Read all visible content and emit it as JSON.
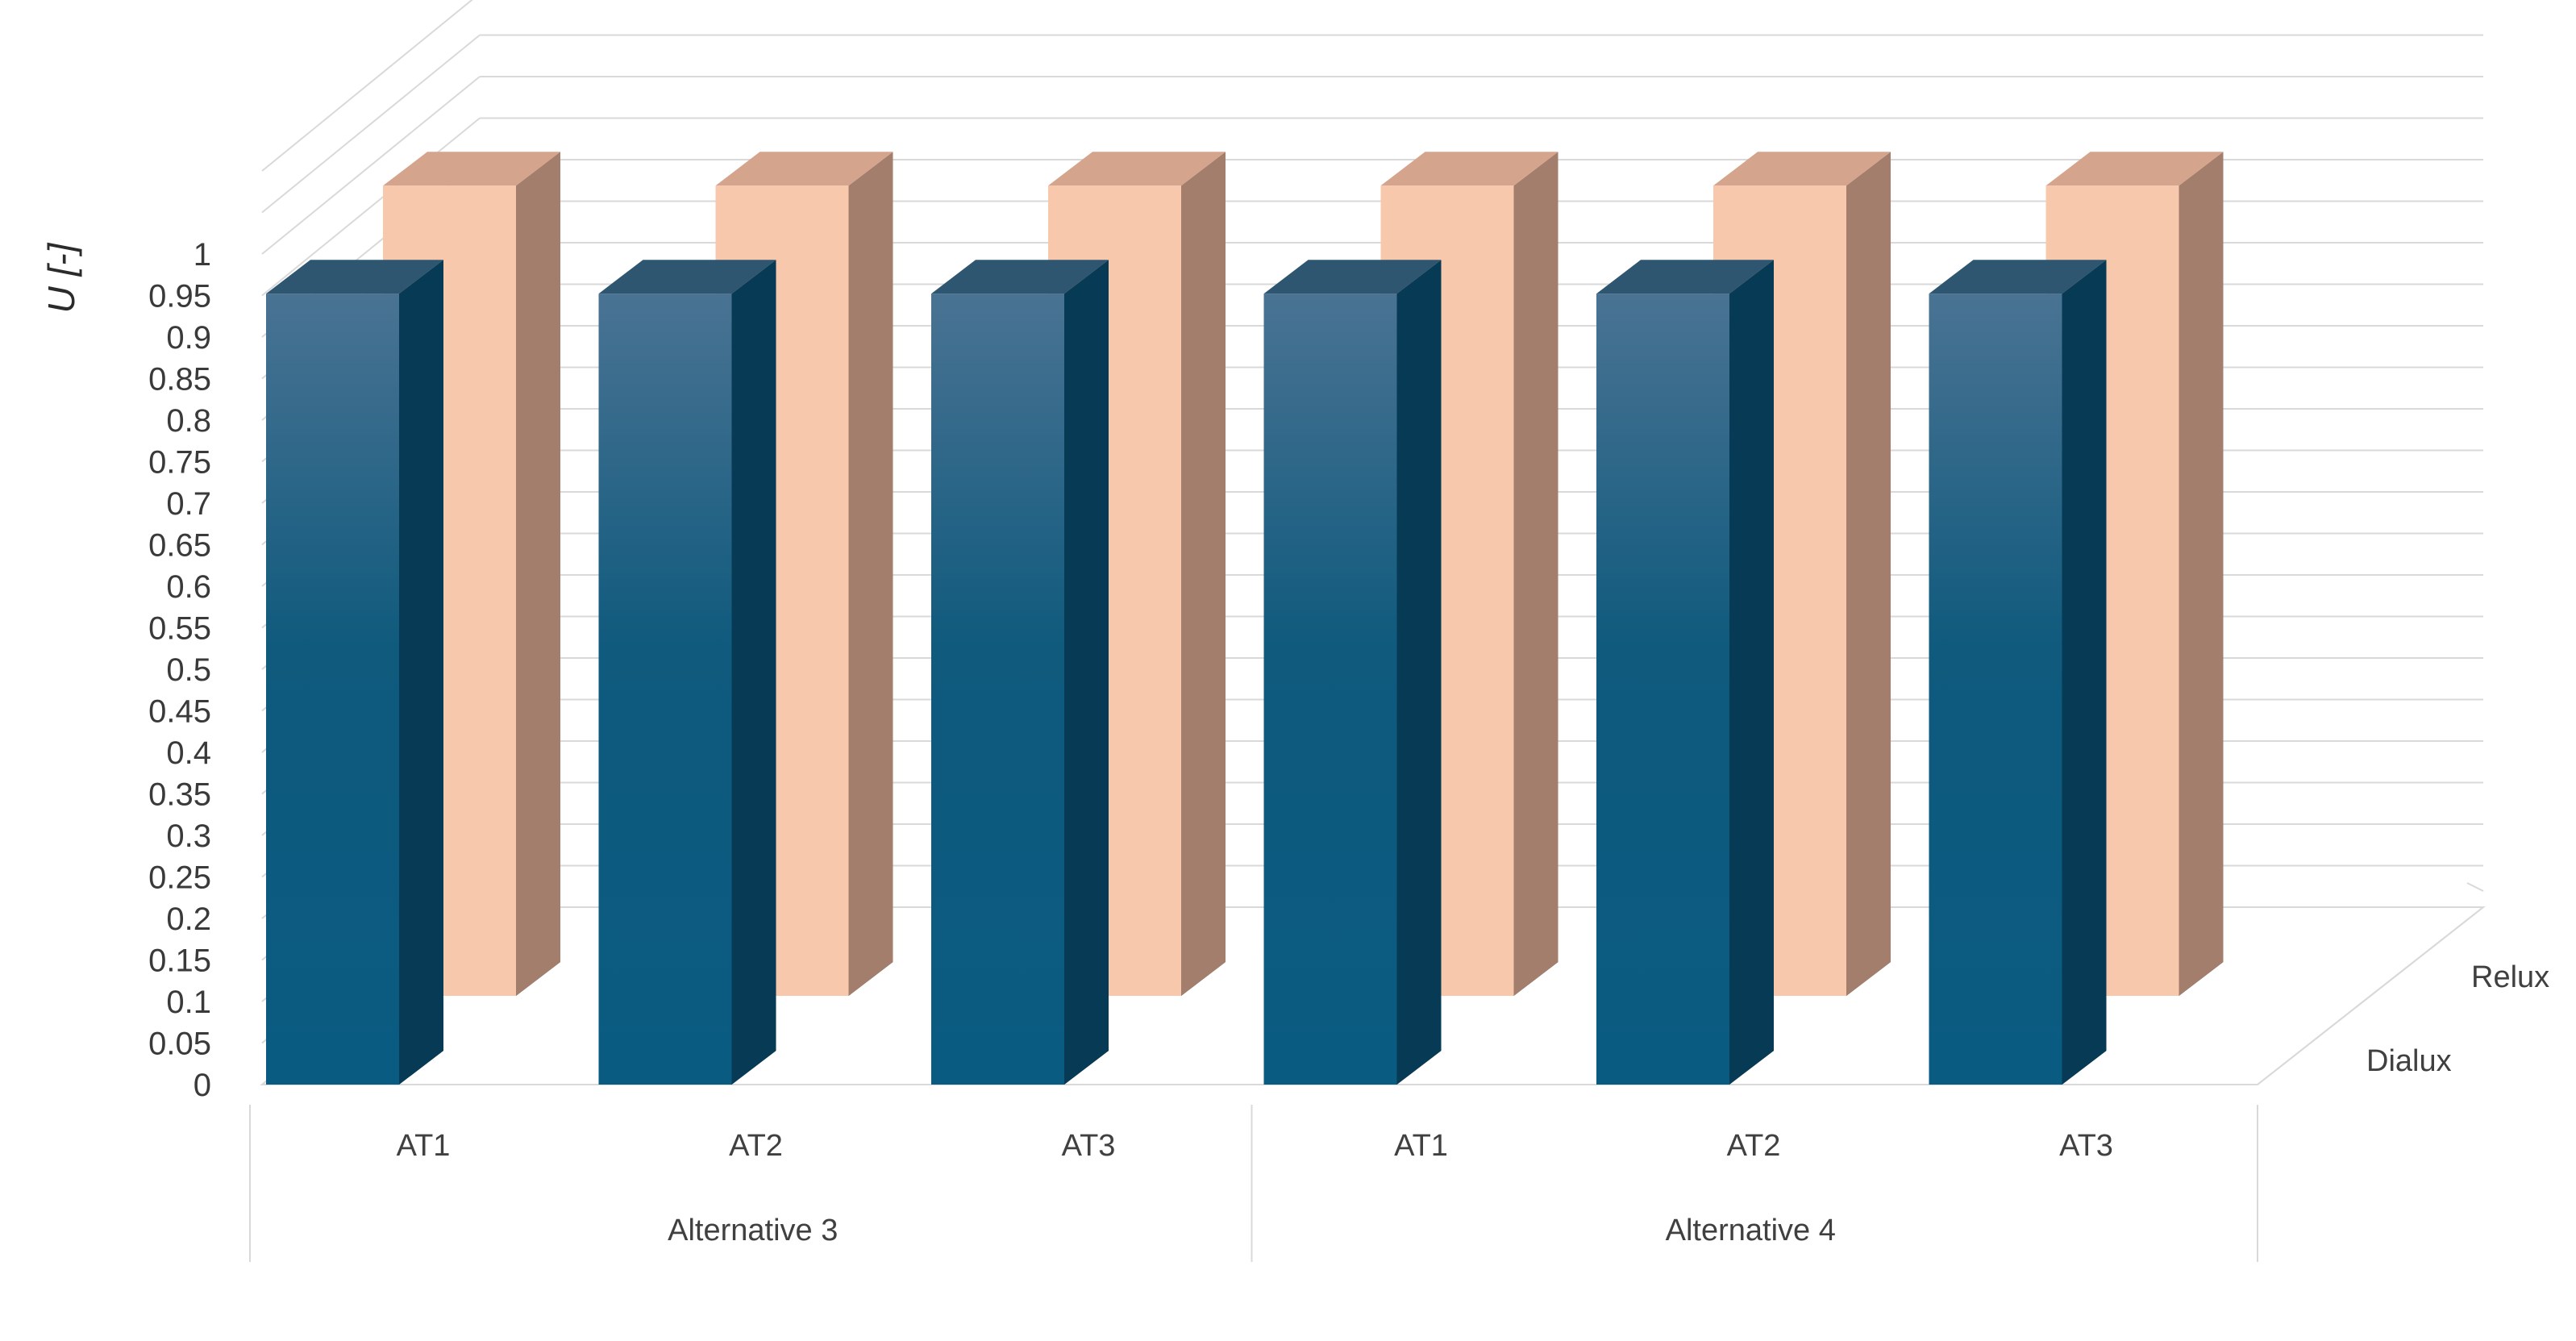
{
  "chart_data": {
    "type": "bar",
    "ylabel": "U [-]",
    "ylim": [
      0,
      1
    ],
    "ytick_step": 0.05,
    "yticks": [
      "0",
      "0.05",
      "0.1",
      "0.15",
      "0.2",
      "0.25",
      "0.3",
      "0.35",
      "0.4",
      "0.45",
      "0.5",
      "0.55",
      "0.6",
      "0.65",
      "0.7",
      "0.75",
      "0.8",
      "0.85",
      "0.9",
      "0.95",
      "1"
    ],
    "groups": [
      "Alternative 3",
      "Alternative 4"
    ],
    "categories": [
      "AT1",
      "AT2",
      "AT3",
      "AT1",
      "AT2",
      "AT3"
    ],
    "series": [
      {
        "name": "Dialux",
        "values": [
          0.96,
          0.96,
          0.96,
          0.96,
          0.96,
          0.96
        ],
        "color": "#1f5f85"
      },
      {
        "name": "Relux",
        "values": [
          0.99,
          0.99,
          0.99,
          0.99,
          0.99,
          0.99
        ],
        "color": "#f8c8ad"
      }
    ],
    "grid": true,
    "view": "3d-column"
  }
}
